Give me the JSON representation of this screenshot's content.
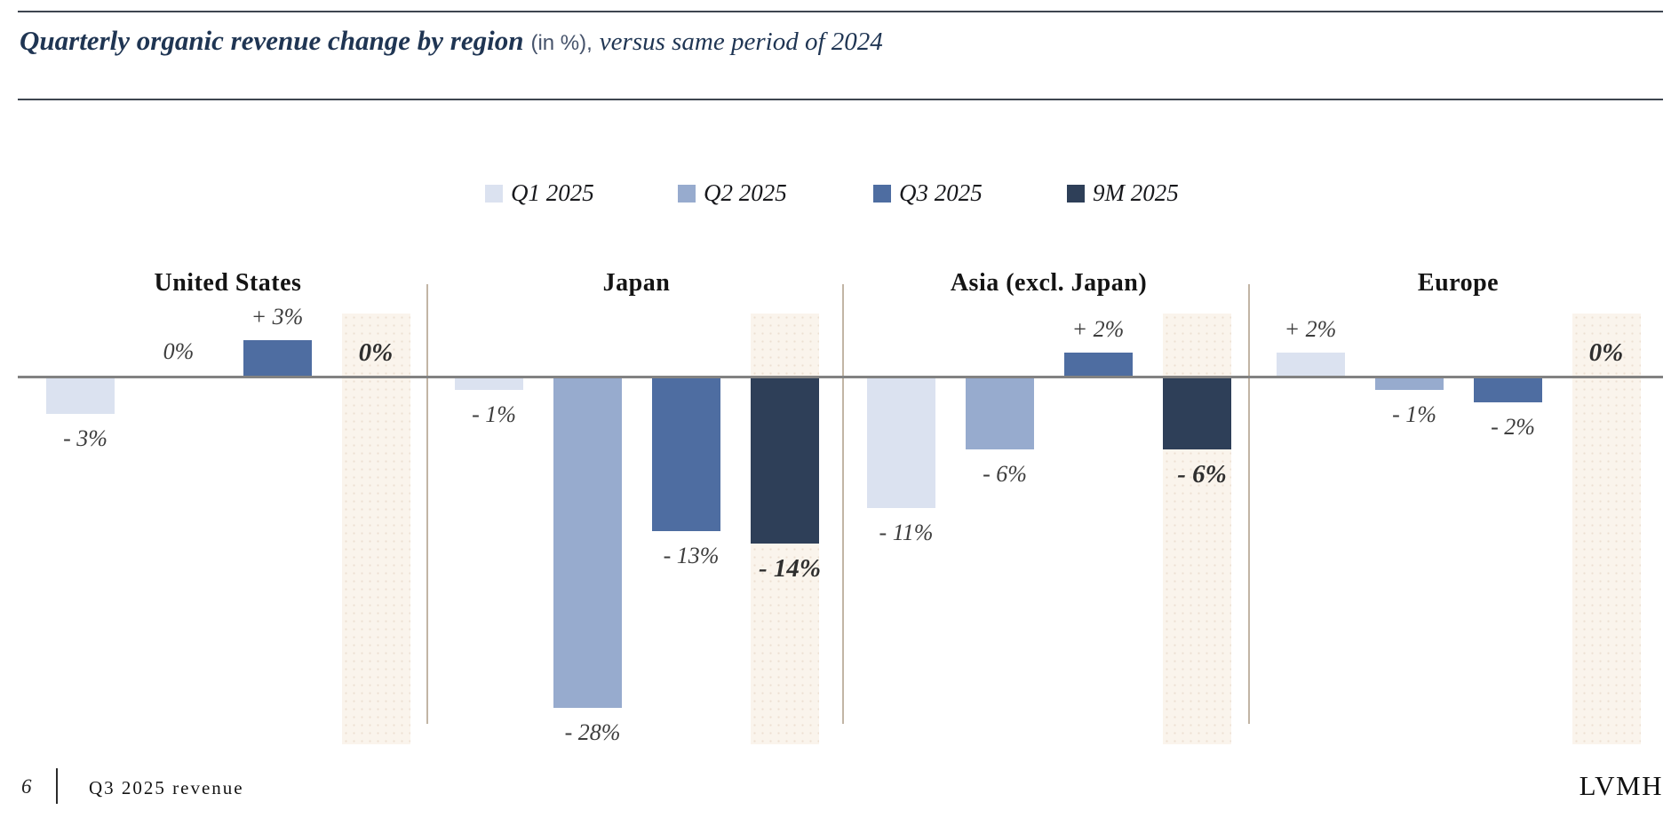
{
  "palette": {
    "navy": "#1f3553",
    "beige": "#faf4ec",
    "axis": "#828282",
    "separator": "#c2b5a5"
  },
  "header": {
    "title_main": "Quarterly organic revenue change by region",
    "title_unit": "(in %),",
    "title_sub": "versus same period of 2024"
  },
  "chart_data": {
    "type": "bar",
    "title": "Quarterly organic revenue change by region (in %), versus same period of 2024",
    "unit": "%",
    "baseline": 0,
    "ylim": [
      -30,
      5
    ],
    "grid": false,
    "legend_position": "top-center",
    "categories": [
      "United States",
      "Japan",
      "Asia (excl. Japan)",
      "Europe"
    ],
    "series": [
      {
        "name": "Q1 2025",
        "color": "#dbe2f0",
        "values": [
          -3,
          -1,
          -11,
          2
        ],
        "labels": [
          "- 3%",
          "- 1%",
          "- 11%",
          "+ 2%"
        ]
      },
      {
        "name": "Q2 2025",
        "color": "#97abce",
        "values": [
          0,
          -28,
          -6,
          -1
        ],
        "labels": [
          "0%",
          "- 28%",
          "- 6%",
          "- 1%"
        ]
      },
      {
        "name": "Q3 2025",
        "color": "#4e6da1",
        "values": [
          3,
          -13,
          2,
          -2
        ],
        "labels": [
          "+ 3%",
          "- 13%",
          "+ 2%",
          "- 2%"
        ]
      },
      {
        "name": "9M 2025",
        "color": "#2e3f58",
        "emphasis": true,
        "values": [
          0,
          -14,
          -6,
          0
        ],
        "labels": [
          "0%",
          "- 14%",
          "- 6%",
          "0%"
        ],
        "highlight_column": true
      }
    ]
  },
  "footer": {
    "page_number": "6",
    "label": "Q3 2025 revenue",
    "brand": "LVMH"
  }
}
